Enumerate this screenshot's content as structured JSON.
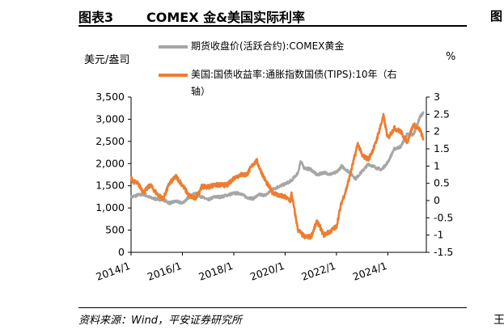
{
  "header": {
    "figure_number": "图表3",
    "title": "COMEX 金&美国实际利率",
    "edge_glyph_top": "图",
    "edge_glyph_bottom": "王"
  },
  "footer": {
    "source": "资料来源：Wind，平安证券研究所"
  },
  "colors": {
    "gold_series": "#a6a6a6",
    "tips_series": "#ed7d31"
  },
  "chart_data": {
    "type": "line",
    "left_axis": {
      "label": "美元/盎司",
      "min": 0,
      "max": 3500,
      "ticks": [
        "0",
        "500",
        "1,000",
        "1,500",
        "2,000",
        "2,500",
        "3,000",
        "3,500"
      ]
    },
    "right_axis": {
      "label": "%",
      "min": -1.5,
      "max": 3,
      "ticks": [
        "-1.5",
        "-1",
        "-0.5",
        "0",
        "0.5",
        "1",
        "1.5",
        "2",
        "2.5",
        "3"
      ]
    },
    "x_axis": {
      "min": 2014.0,
      "max": 2025.5,
      "ticks": [
        "2014/1",
        "2016/1",
        "2018/1",
        "2020/1",
        "2022/1",
        "2024/1"
      ],
      "tick_values": [
        2014,
        2016,
        2018,
        2020,
        2022,
        2024
      ]
    },
    "grid": false,
    "legend": "top",
    "series": [
      {
        "name": "期货收盘价(活跃合约):COMEX黄金",
        "axis": "left",
        "x": [
          2014.0,
          2014.25,
          2014.5,
          2014.75,
          2015.0,
          2015.25,
          2015.5,
          2015.75,
          2016.0,
          2016.25,
          2016.5,
          2016.75,
          2017.0,
          2017.25,
          2017.5,
          2017.75,
          2018.0,
          2018.25,
          2018.5,
          2018.75,
          2019.0,
          2019.25,
          2019.5,
          2019.75,
          2020.0,
          2020.25,
          2020.5,
          2020.6,
          2020.75,
          2021.0,
          2021.25,
          2021.5,
          2021.75,
          2022.0,
          2022.2,
          2022.5,
          2022.75,
          2023.0,
          2023.25,
          2023.5,
          2023.75,
          2024.0,
          2024.25,
          2024.5,
          2024.75,
          2025.0,
          2025.25,
          2025.4
        ],
        "values": [
          1240,
          1290,
          1310,
          1230,
          1200,
          1190,
          1110,
          1150,
          1110,
          1240,
          1330,
          1250,
          1180,
          1250,
          1250,
          1290,
          1330,
          1330,
          1240,
          1210,
          1300,
          1290,
          1420,
          1480,
          1540,
          1620,
          1790,
          2050,
          1900,
          1870,
          1740,
          1800,
          1760,
          1800,
          1940,
          1810,
          1660,
          1830,
          1990,
          1920,
          1860,
          2030,
          2330,
          2380,
          2660,
          2650,
          3050,
          3150
        ]
      },
      {
        "name": "美国:国债收益率:通胀指数国债(TIPS):10年（右轴）",
        "axis": "right",
        "x": [
          2014.0,
          2014.1,
          2014.25,
          2014.5,
          2014.75,
          2015.0,
          2015.25,
          2015.5,
          2015.75,
          2016.0,
          2016.25,
          2016.5,
          2016.75,
          2017.0,
          2017.25,
          2017.5,
          2017.75,
          2018.0,
          2018.25,
          2018.5,
          2018.75,
          2018.9,
          2019.0,
          2019.25,
          2019.5,
          2019.75,
          2020.0,
          2020.2,
          2020.25,
          2020.5,
          2020.75,
          2021.0,
          2021.25,
          2021.5,
          2021.75,
          2022.0,
          2022.2,
          2022.35,
          2022.5,
          2022.75,
          2022.83,
          2023.0,
          2023.25,
          2023.5,
          2023.75,
          2023.83,
          2024.0,
          2024.25,
          2024.5,
          2024.75,
          2025.0,
          2025.25,
          2025.4
        ],
        "values": [
          0.65,
          0.55,
          0.5,
          0.25,
          0.45,
          0.2,
          0.05,
          0.5,
          0.7,
          0.45,
          0.15,
          0.05,
          0.4,
          0.4,
          0.45,
          0.45,
          0.45,
          0.65,
          0.75,
          0.75,
          1.05,
          1.15,
          0.95,
          0.55,
          0.25,
          0.15,
          0.1,
          0.0,
          0.2,
          -0.85,
          -1.05,
          -1.05,
          -0.6,
          -1.0,
          -0.9,
          -0.75,
          -0.05,
          0.25,
          0.65,
          1.4,
          1.65,
          1.3,
          1.2,
          1.6,
          2.25,
          2.45,
          1.8,
          2.1,
          2.0,
          1.7,
          2.2,
          2.05,
          1.75
        ]
      }
    ]
  }
}
